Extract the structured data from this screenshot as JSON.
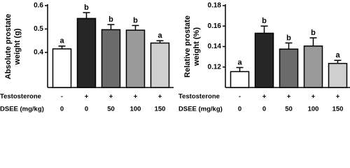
{
  "chart_data": [
    {
      "type": "bar",
      "ylabel": [
        "Absolute prostate",
        "weight (g)"
      ],
      "values": [
        0.415,
        0.545,
        0.497,
        0.495,
        0.44
      ],
      "errors": [
        0.012,
        0.025,
        0.022,
        0.02,
        0.01
      ],
      "letters": [
        "a",
        "b",
        "b",
        "b",
        "a"
      ],
      "colors": [
        "#ffffff",
        "#262626",
        "#6b6b6b",
        "#9a9a9a",
        "#cfcfcf"
      ],
      "ylim": [
        0.25,
        0.6
      ],
      "yticks": [
        0.4,
        0.5,
        0.6
      ],
      "rows": [
        {
          "label": "Testosterone",
          "values": [
            "-",
            "+",
            "+",
            "+",
            "+"
          ]
        },
        {
          "label": "DSEE (mg/kg)",
          "values": [
            0,
            0,
            50,
            100,
            150
          ]
        }
      ]
    },
    {
      "type": "bar",
      "ylabel": [
        "Relative prostate",
        "weight (%)"
      ],
      "values": [
        0.1155,
        0.153,
        0.1375,
        0.1405,
        0.1235
      ],
      "errors": [
        0.004,
        0.007,
        0.006,
        0.008,
        0.003
      ],
      "letters": [
        "a",
        "b",
        "b",
        "b",
        "a"
      ],
      "colors": [
        "#ffffff",
        "#262626",
        "#6b6b6b",
        "#9a9a9a",
        "#cfcfcf"
      ],
      "ylim": [
        0.1,
        0.18
      ],
      "yticks": [
        0.12,
        0.14,
        0.16,
        0.18
      ],
      "rows": [
        {
          "label": "Testosterone",
          "values": [
            "-",
            "+",
            "+",
            "+",
            "+"
          ]
        },
        {
          "label": "DSEE (mg/kg)",
          "values": [
            0,
            0,
            50,
            100,
            150
          ]
        }
      ]
    }
  ]
}
